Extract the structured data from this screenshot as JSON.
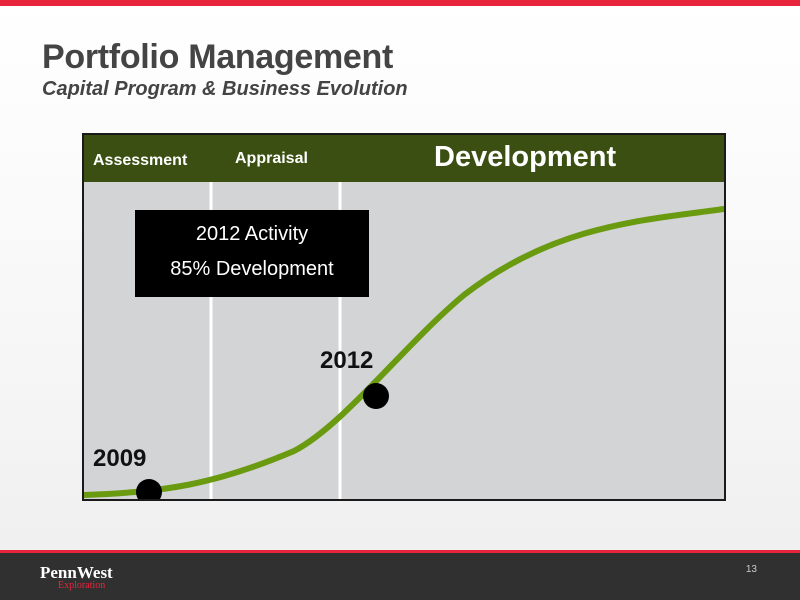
{
  "slide": {
    "title": "Portfolio Management",
    "subtitle": "Capital Program & Business Evolution",
    "page_number": "13"
  },
  "diagram": {
    "phases": {
      "assessment": "Assessment",
      "appraisal": "Appraisal",
      "development": "Development"
    },
    "callout": {
      "line1": "2012 Activity",
      "line2": "85% Development"
    },
    "milestones": {
      "year_2012": "2012",
      "year_2009": "2009"
    }
  },
  "footer": {
    "logo_main": "PennWest",
    "logo_sub": "Exploration"
  },
  "colors": {
    "accent_red": "#e8243c",
    "phase_header_green": "#3a4f11",
    "curve_green": "#6a9a10",
    "diagram_background": "#d3d4d6"
  }
}
